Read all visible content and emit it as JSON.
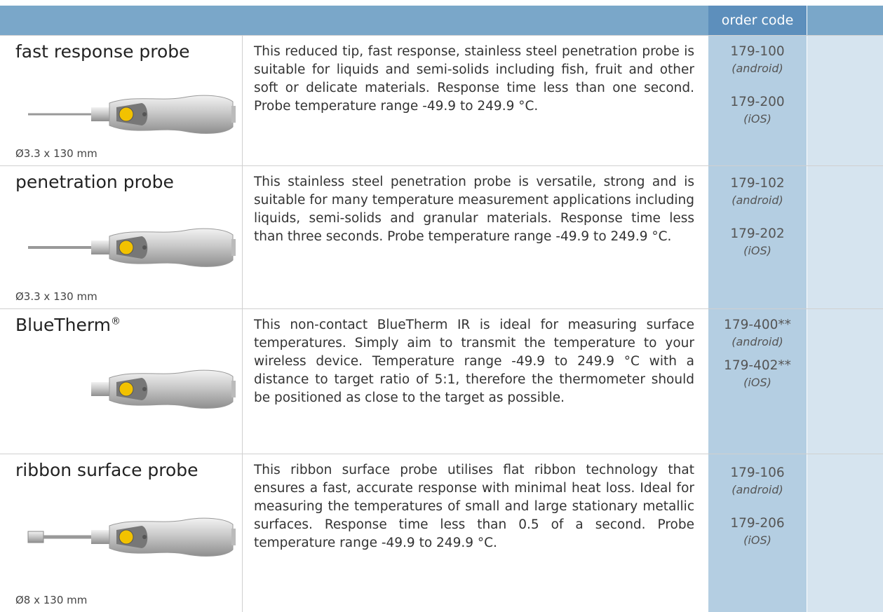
{
  "header": {
    "order_code_label": "order code"
  },
  "rows": [
    {
      "name": "fast response probe",
      "size": "Ø3.3 x 130 mm",
      "description": "This reduced tip, fast response, stainless steel penetration probe is suitable for liquids and semi-solids including fish, fruit and other soft or delicate materials. Response time less than one second. Probe temperature range -49.9 to 249.9 °C.",
      "codes": [
        {
          "code": "179-100",
          "platform": "(android)"
        },
        {
          "code": "179-200",
          "platform": "(iOS)"
        }
      ]
    },
    {
      "name": "penetration probe",
      "size": "Ø3.3 x 130 mm",
      "description": "This stainless steel penetration probe is versatile, strong and is suitable for many temperature measurement applications including liquids, semi-solids and granular materials. Response time less than three seconds. Probe temperature range -49.9 to 249.9 °C.",
      "codes": [
        {
          "code": "179-102",
          "platform": "(android)"
        },
        {
          "code": "179-202",
          "platform": "(iOS)"
        }
      ]
    },
    {
      "name": "BlueTherm",
      "trademark": "®",
      "description": "This non-contact BlueTherm IR is ideal for measuring surface temperatures. Simply aim to transmit the temperature to your wireless device. Temperature range -49.9 to 249.9 °C with a distance to target ratio of 5:1, therefore the thermometer should be positioned as close to the target as possible.",
      "codes": [
        {
          "code": "179-400**",
          "platform": "(android)"
        },
        {
          "code": "179-402**",
          "platform": "(iOS)"
        }
      ]
    },
    {
      "name": "ribbon surface probe",
      "size": "Ø8 x 130 mm",
      "description": "This ribbon surface probe utilises flat ribbon technology that ensures a fast, accurate response with minimal heat loss. Ideal for measuring the temperatures of small and large stationary metallic surfaces. Response time less than 0.5 of a second. Probe temperature range -49.9 to 249.9 °C.",
      "codes": [
        {
          "code": "179-106",
          "platform": "(android)"
        },
        {
          "code": "179-206",
          "platform": "(iOS)"
        }
      ]
    }
  ]
}
